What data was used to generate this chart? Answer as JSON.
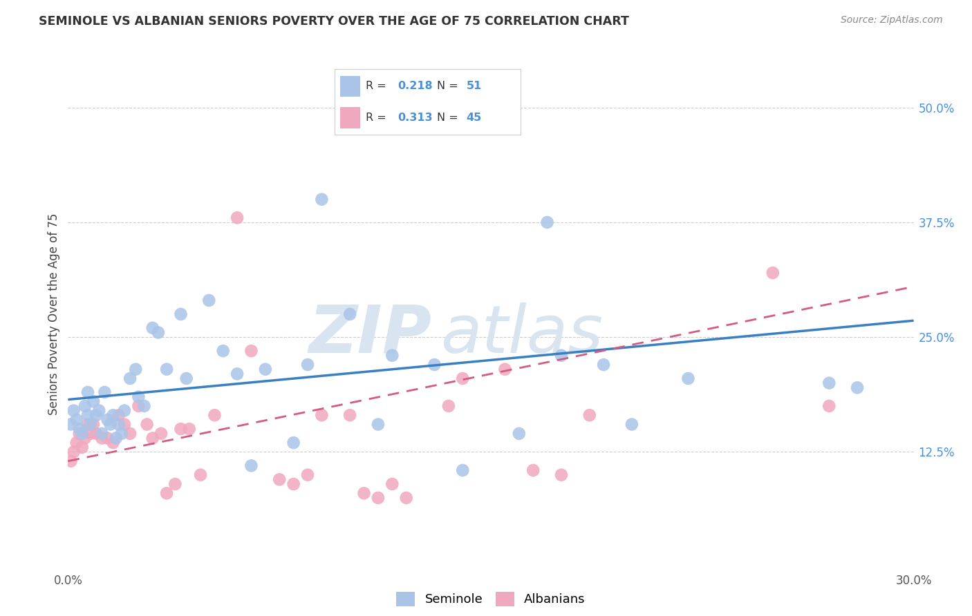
{
  "title": "SEMINOLE VS ALBANIAN SENIORS POVERTY OVER THE AGE OF 75 CORRELATION CHART",
  "source": "Source: ZipAtlas.com",
  "ylabel": "Seniors Poverty Over the Age of 75",
  "ytick_values": [
    0.125,
    0.25,
    0.375,
    0.5
  ],
  "ytick_labels": [
    "12.5%",
    "25.0%",
    "37.5%",
    "50.0%"
  ],
  "xlim": [
    0.0,
    0.3
  ],
  "ylim": [
    0.0,
    0.55
  ],
  "seminole_R": 0.218,
  "seminole_N": 51,
  "albanians_R": 0.313,
  "albanians_N": 45,
  "seminole_color": "#aac4e8",
  "albanian_color": "#f0a8be",
  "seminole_line_color": "#3a7fc1",
  "albanian_line_color": "#d45c80",
  "watermark_color": "#d8e4f0",
  "background_color": "#ffffff",
  "grid_color": "#cccccc",
  "seminole_x": [
    0.001,
    0.002,
    0.003,
    0.004,
    0.005,
    0.006,
    0.007,
    0.007,
    0.008,
    0.009,
    0.01,
    0.011,
    0.012,
    0.013,
    0.014,
    0.015,
    0.016,
    0.017,
    0.018,
    0.019,
    0.02,
    0.022,
    0.024,
    0.025,
    0.027,
    0.03,
    0.032,
    0.035,
    0.04,
    0.042,
    0.05,
    0.055,
    0.06,
    0.065,
    0.07,
    0.08,
    0.085,
    0.09,
    0.1,
    0.11,
    0.115,
    0.13,
    0.14,
    0.16,
    0.17,
    0.175,
    0.19,
    0.2,
    0.22,
    0.27,
    0.28
  ],
  "seminole_y": [
    0.155,
    0.17,
    0.16,
    0.15,
    0.145,
    0.175,
    0.165,
    0.19,
    0.155,
    0.18,
    0.165,
    0.17,
    0.145,
    0.19,
    0.16,
    0.155,
    0.165,
    0.14,
    0.155,
    0.145,
    0.17,
    0.205,
    0.215,
    0.185,
    0.175,
    0.26,
    0.255,
    0.215,
    0.275,
    0.205,
    0.29,
    0.235,
    0.21,
    0.11,
    0.215,
    0.135,
    0.22,
    0.4,
    0.275,
    0.155,
    0.23,
    0.22,
    0.105,
    0.145,
    0.375,
    0.23,
    0.22,
    0.155,
    0.205,
    0.2,
    0.195
  ],
  "albanian_x": [
    0.001,
    0.002,
    0.003,
    0.004,
    0.005,
    0.006,
    0.007,
    0.008,
    0.009,
    0.01,
    0.012,
    0.014,
    0.016,
    0.018,
    0.02,
    0.022,
    0.025,
    0.028,
    0.03,
    0.033,
    0.035,
    0.038,
    0.04,
    0.043,
    0.047,
    0.052,
    0.06,
    0.065,
    0.075,
    0.08,
    0.085,
    0.09,
    0.1,
    0.105,
    0.11,
    0.115,
    0.12,
    0.135,
    0.14,
    0.155,
    0.165,
    0.175,
    0.185,
    0.25,
    0.27
  ],
  "albanian_y": [
    0.115,
    0.125,
    0.135,
    0.145,
    0.13,
    0.14,
    0.155,
    0.145,
    0.155,
    0.145,
    0.14,
    0.14,
    0.135,
    0.165,
    0.155,
    0.145,
    0.175,
    0.155,
    0.14,
    0.145,
    0.08,
    0.09,
    0.15,
    0.15,
    0.1,
    0.165,
    0.38,
    0.235,
    0.095,
    0.09,
    0.1,
    0.165,
    0.165,
    0.08,
    0.075,
    0.09,
    0.075,
    0.175,
    0.205,
    0.215,
    0.105,
    0.1,
    0.165,
    0.32,
    0.175
  ],
  "sem_line_x0": 0.0,
  "sem_line_y0": 0.182,
  "sem_line_x1": 0.3,
  "sem_line_y1": 0.268,
  "alb_line_x0": 0.0,
  "alb_line_y0": 0.115,
  "alb_line_x1": 0.3,
  "alb_line_y1": 0.305
}
